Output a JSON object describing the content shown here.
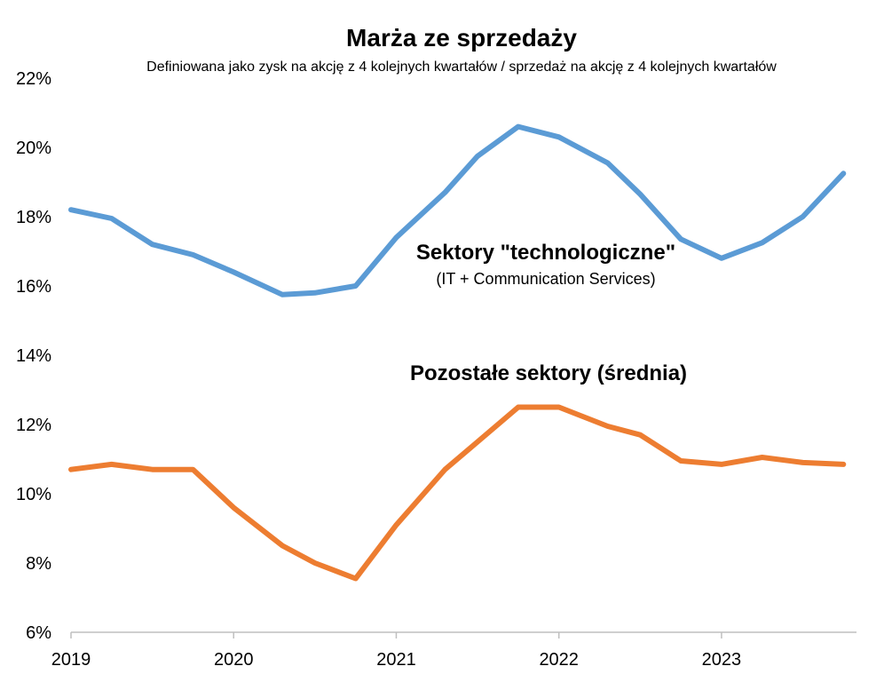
{
  "chart_data": {
    "type": "line",
    "title": "Marża ze sprzedaży",
    "subtitle": "Definiowana jako zysk na akcję z 4 kolejnych kwartałów / sprzedaż na akcję z 4 kolejnych kwartałów",
    "xlabel": "",
    "ylabel": "",
    "ylim": [
      6,
      22
    ],
    "xlim": [
      2019,
      2023.83
    ],
    "y_ticks": [
      "6%",
      "8%",
      "10%",
      "12%",
      "14%",
      "16%",
      "18%",
      "20%",
      "22%"
    ],
    "x_ticks": [
      "2019",
      "2020",
      "2021",
      "2022",
      "2023"
    ],
    "grid": false,
    "x": [
      2019.0,
      2019.25,
      2019.5,
      2019.75,
      2020.0,
      2020.3,
      2020.5,
      2020.75,
      2021.0,
      2021.3,
      2021.5,
      2021.75,
      2022.0,
      2022.3,
      2022.5,
      2022.75,
      2023.0,
      2023.25,
      2023.5,
      2023.75
    ],
    "series": [
      {
        "name": "Sektory \"technologiczne\"",
        "sublabel": "(IT + Communication Services)",
        "color": "#5B9BD5",
        "values": [
          18.2,
          17.95,
          17.2,
          16.9,
          16.4,
          15.75,
          15.8,
          16.0,
          17.4,
          18.7,
          19.75,
          20.6,
          20.3,
          19.55,
          18.65,
          17.35,
          16.8,
          17.25,
          18.0,
          19.25
        ]
      },
      {
        "name": "Pozostałe sektory (średnia)",
        "color": "#ED7D31",
        "values": [
          10.7,
          10.85,
          10.7,
          10.7,
          9.6,
          8.5,
          8.0,
          7.55,
          9.1,
          10.7,
          11.5,
          12.5,
          12.5,
          11.95,
          11.7,
          10.95,
          10.85,
          11.05,
          10.9,
          10.85
        ]
      }
    ]
  }
}
